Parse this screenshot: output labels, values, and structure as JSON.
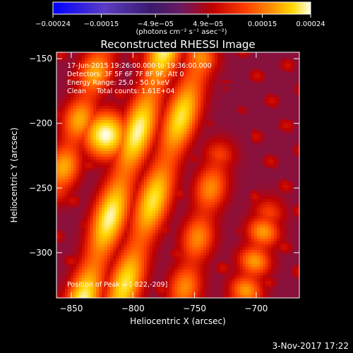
{
  "chart_data": {
    "type": "heatmap",
    "title": "Reconstructed RHESSI Image",
    "xlabel": "Heliocentric X (arcsec)",
    "ylabel": "Heliocentric Y (arcsec)",
    "xlim": [
      -862,
      -665
    ],
    "ylim": [
      -335,
      -145
    ],
    "xticks": [
      -850,
      -800,
      -750,
      -700
    ],
    "xtick_labels": [
      "−850",
      "−800",
      "−750",
      "−700"
    ],
    "yticks": [
      -150,
      -200,
      -250,
      -300
    ],
    "ytick_labels": [
      "−150",
      "−200",
      "−250",
      "−300"
    ],
    "colorbar": {
      "min": -0.00024,
      "max": 0.00024,
      "ticks": [
        -0.00024,
        -0.00015,
        -4.9e-05,
        4.9e-05,
        0.00015,
        0.00024
      ],
      "tick_labels": [
        "−0.00024",
        "−0.00015",
        "−4.9e−05",
        "4.9e−05",
        "0.00015",
        "0.00024"
      ],
      "unit_label": "(photons cm⁻² s⁻¹ asec⁻²)",
      "colors": [
        "#0000ff",
        "#5b3cc4",
        "#3a1a6e",
        "#6a1a60",
        "#c00000",
        "#ff4000",
        "#ff9000",
        "#ffd800",
        "#ffffe8"
      ]
    },
    "annotations": {
      "time_range": "17-Jun-2015 19:26:00.000 to 19:36:00.000",
      "detectors": "Detectors: 3F 5F 6F 7F 8F 9F, Att 0",
      "energy": "Energy Range: 25.0 - 50.0 keV",
      "clean": "Clean     Total counts: 1.61E+04",
      "peak": "Position of Peak = [-822,-209]"
    },
    "peak": {
      "x": -822,
      "y": -209
    },
    "ridges": [
      {
        "x0": -840,
        "y0": -335,
        "x1": -775,
        "y1": -145,
        "amp": 0.95
      },
      {
        "x0": -810,
        "y0": -335,
        "x1": -745,
        "y1": -150,
        "amp": 0.85
      },
      {
        "x0": -760,
        "y0": -335,
        "x1": -730,
        "y1": -225,
        "amp": 0.55
      },
      {
        "x0": -710,
        "y0": -335,
        "x1": -690,
        "y1": -270,
        "amp": 0.6
      },
      {
        "x0": -862,
        "y0": -250,
        "x1": -825,
        "y1": -145,
        "amp": 0.65
      }
    ]
  },
  "footer": {
    "date": "3-Nov-2017 17:22"
  }
}
